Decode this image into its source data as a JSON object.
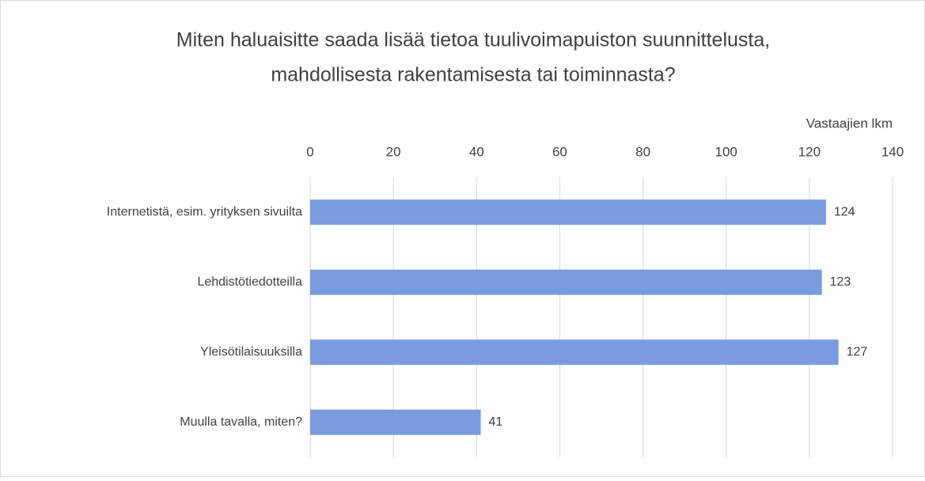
{
  "chart_data": {
    "type": "bar",
    "orientation": "horizontal",
    "title": [
      "Miten haluaisitte saada lisää tietoa tuulivoimapuiston suunnittelusta,",
      "mahdollisesta rakentamisesta tai toiminnasta?"
    ],
    "xlabel": "Vastaajien lkm",
    "categories": [
      "Internetistä, esim. yrityksen sivuilta",
      "Lehdistötiedotteilla",
      "Yleisötilaisuuksilla",
      "Muulla tavalla, miten?"
    ],
    "values": [
      124,
      123,
      127,
      41
    ],
    "color": "#7a9be0",
    "xlim": [
      0,
      140
    ],
    "xticks": [
      0,
      20,
      40,
      60,
      80,
      100,
      120,
      140
    ],
    "grid": true
  }
}
